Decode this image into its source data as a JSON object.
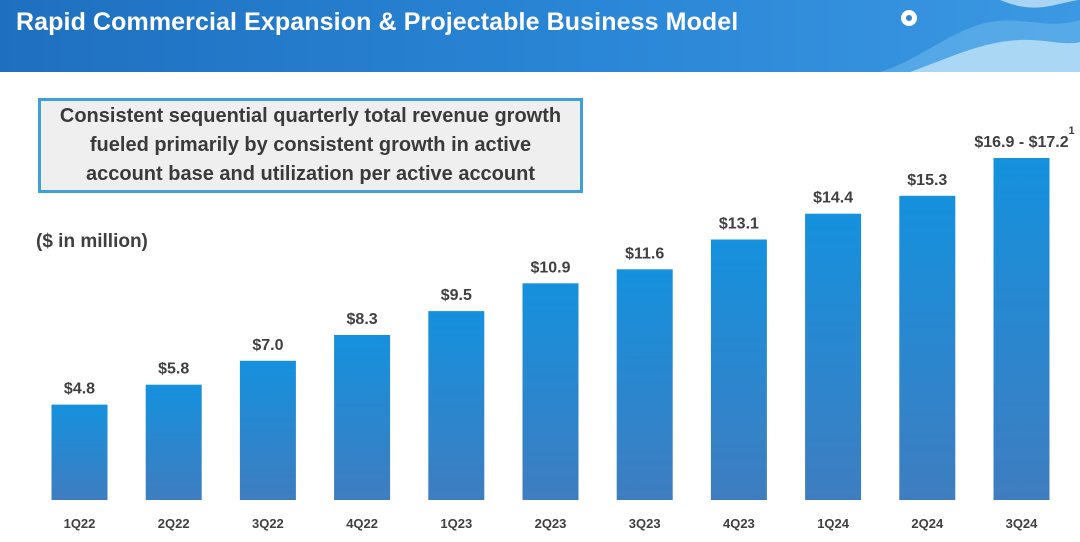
{
  "header": {
    "title": "Rapid Commercial Expansion & Projectable Business Model"
  },
  "callout": {
    "text": "Consistent sequential quarterly total revenue growth fueled primarily by consistent growth in active account base and utilization per active account"
  },
  "units_label": "($ in million)",
  "colors": {
    "header": "#2a86d6",
    "bar_top": "#1591de",
    "bar_bottom": "#3f7dc0",
    "label_text": "#404040",
    "callout_border": "#3ea0d8"
  },
  "chart_data": {
    "type": "bar",
    "categories": [
      "1Q22",
      "2Q22",
      "3Q22",
      "4Q22",
      "1Q23",
      "2Q23",
      "3Q23",
      "4Q23",
      "1Q24",
      "2Q24",
      "3Q24"
    ],
    "values": [
      4.8,
      5.8,
      7.0,
      8.3,
      9.5,
      10.9,
      11.6,
      13.1,
      14.4,
      15.3,
      17.2
    ],
    "value_range_last": [
      16.9,
      17.2
    ],
    "data_labels": [
      "$4.8",
      "$5.8",
      "$7.0",
      "$8.3",
      "$9.5",
      "$10.9",
      "$11.6",
      "$13.1",
      "$14.4",
      "$15.3",
      "$16.9 - $17.2"
    ],
    "footnote_marker": "1",
    "ylabel": "($ in million)",
    "ylim": [
      0,
      17.2
    ],
    "grid": false,
    "legend": "none"
  }
}
